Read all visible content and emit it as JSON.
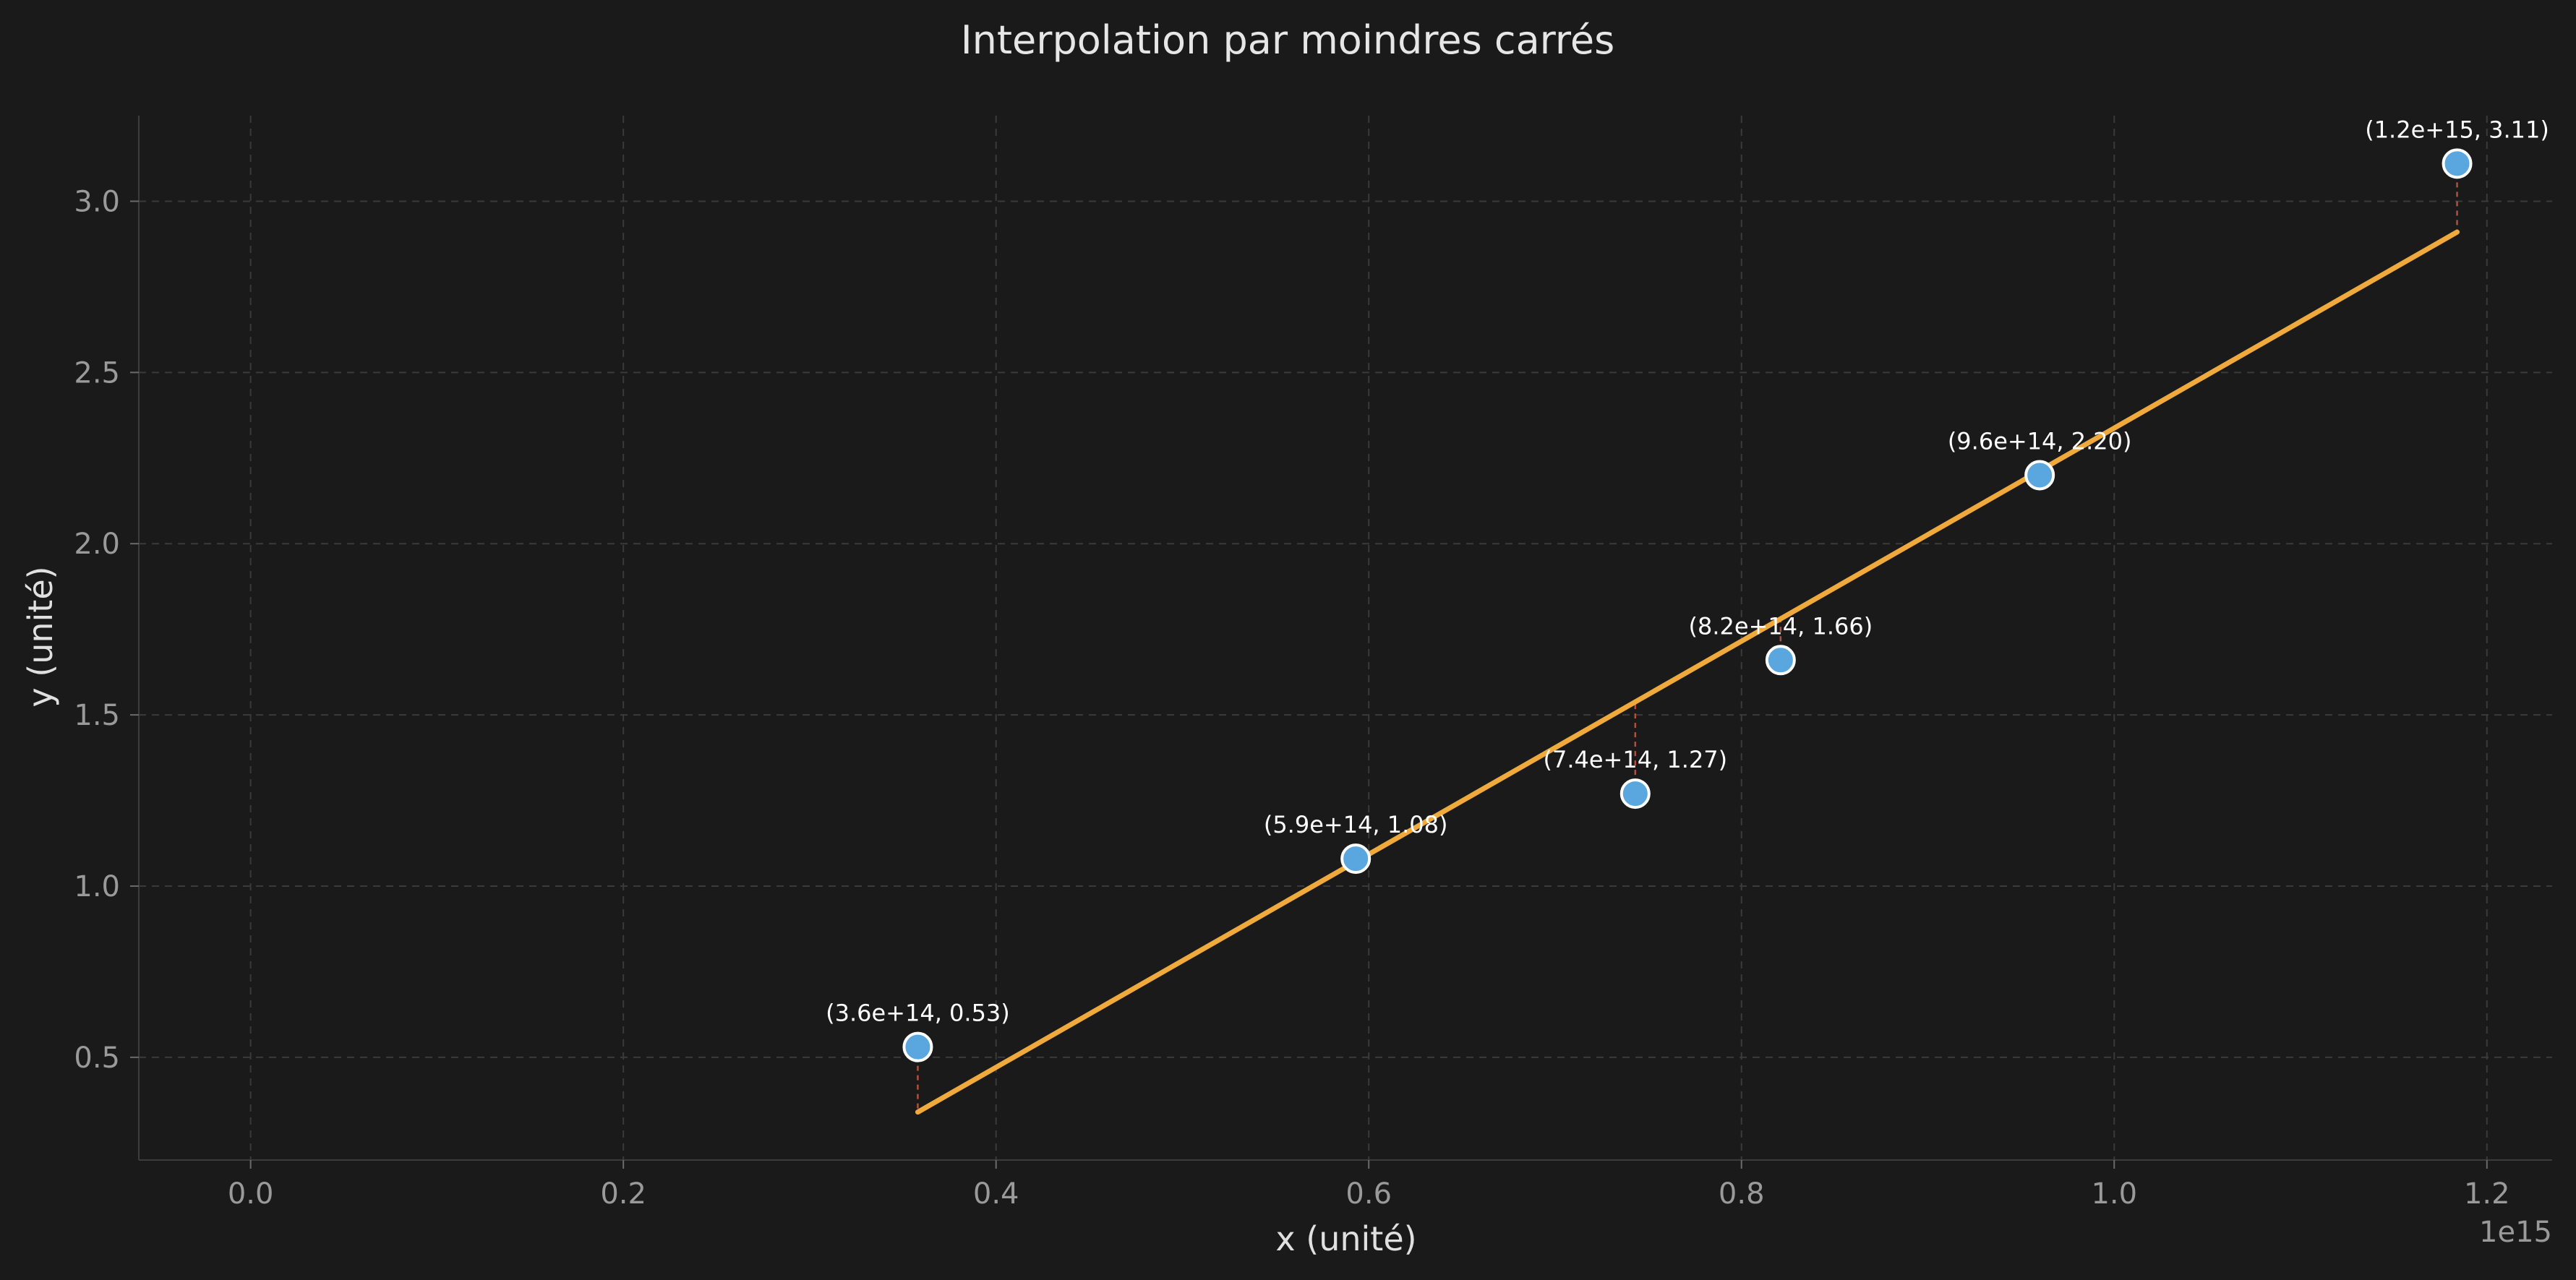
{
  "chart_data": {
    "type": "scatter",
    "title": "Interpolation par moindres carrés",
    "xlabel": "x (unité)",
    "ylabel": "y (unité)",
    "x_offset_label": "1e15",
    "xlim": [
      -0.06,
      1.235
    ],
    "ylim": [
      0.2,
      3.25
    ],
    "x_ticks": [
      0.0,
      0.2,
      0.4,
      0.6,
      0.8,
      1.0,
      1.2
    ],
    "x_tick_labels": [
      "0.0",
      "0.2",
      "0.4",
      "0.6",
      "0.8",
      "1.0",
      "1.2"
    ],
    "y_ticks": [
      0.5,
      1.0,
      1.5,
      2.0,
      2.5,
      3.0
    ],
    "y_tick_labels": [
      "0.5",
      "1.0",
      "1.5",
      "2.0",
      "2.5",
      "3.0"
    ],
    "grid": true,
    "points": [
      {
        "x": 0.358,
        "y": 0.53,
        "label": "(3.6e+14, 0.53)"
      },
      {
        "x": 0.593,
        "y": 1.08,
        "label": "(5.9e+14, 1.08)"
      },
      {
        "x": 0.743,
        "y": 1.27,
        "label": "(7.4e+14, 1.27)"
      },
      {
        "x": 0.821,
        "y": 1.66,
        "label": "(8.2e+14, 1.66)"
      },
      {
        "x": 0.96,
        "y": 2.2,
        "label": "(9.6e+14, 2.20)"
      },
      {
        "x": 1.184,
        "y": 3.11,
        "label": "(1.2e+15, 3.11)"
      }
    ],
    "fit_line": {
      "x": [
        0.358,
        1.184
      ],
      "y": [
        0.34,
        2.91
      ]
    },
    "colors": {
      "background": "#1a1a1a",
      "points": "#5aa6df",
      "fit_line": "#f0aa3c",
      "residuals": "#b05040"
    }
  }
}
